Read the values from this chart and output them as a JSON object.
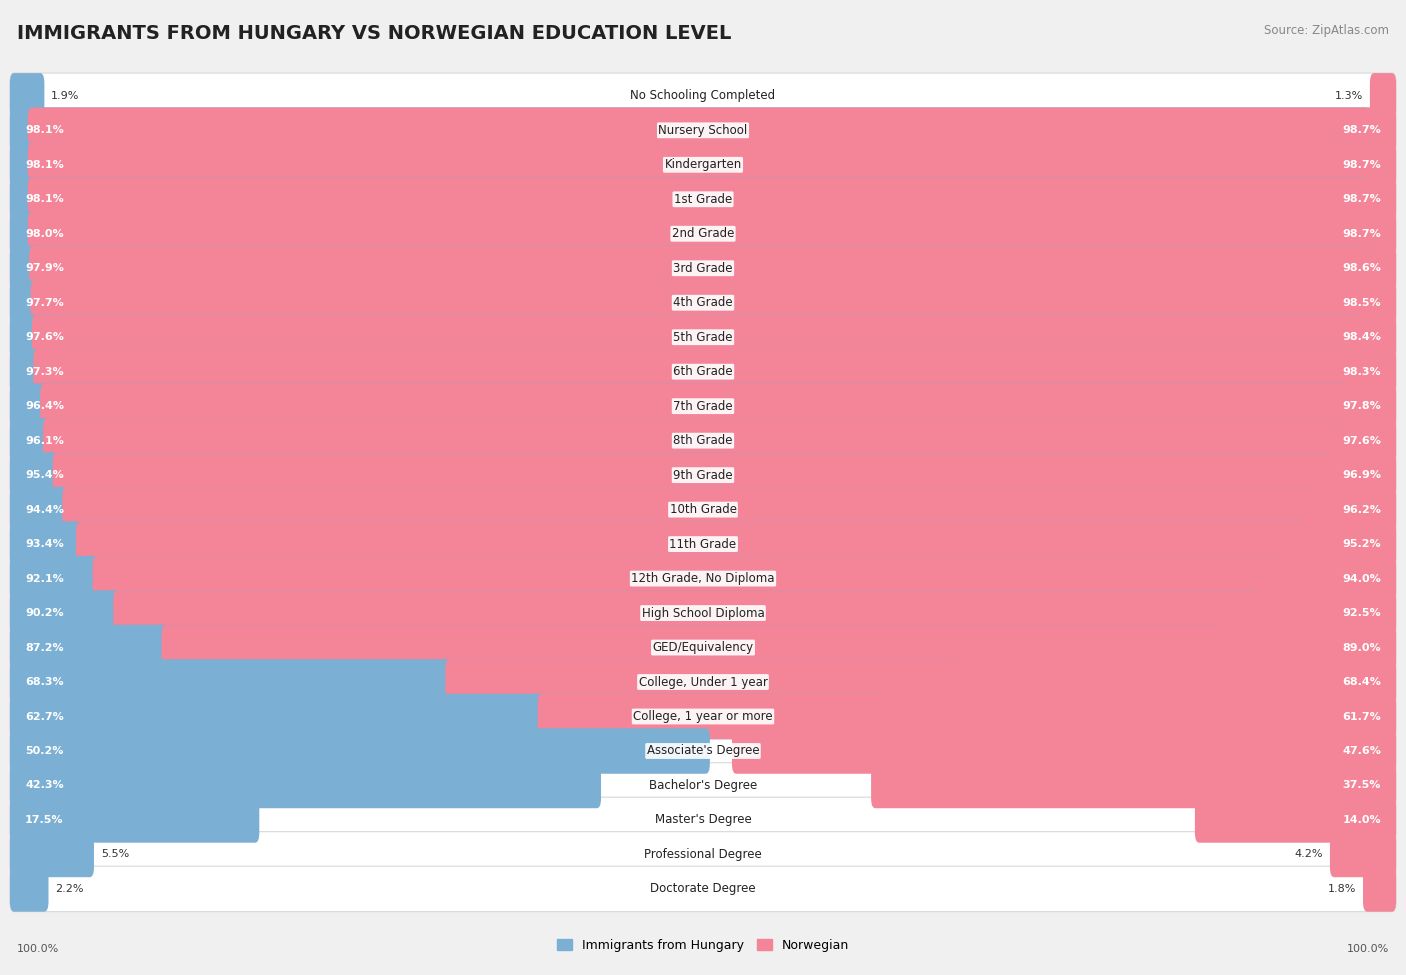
{
  "title": "IMMIGRANTS FROM HUNGARY VS NORWEGIAN EDUCATION LEVEL",
  "source": "Source: ZipAtlas.com",
  "categories": [
    "No Schooling Completed",
    "Nursery School",
    "Kindergarten",
    "1st Grade",
    "2nd Grade",
    "3rd Grade",
    "4th Grade",
    "5th Grade",
    "6th Grade",
    "7th Grade",
    "8th Grade",
    "9th Grade",
    "10th Grade",
    "11th Grade",
    "12th Grade, No Diploma",
    "High School Diploma",
    "GED/Equivalency",
    "College, Under 1 year",
    "College, 1 year or more",
    "Associate's Degree",
    "Bachelor's Degree",
    "Master's Degree",
    "Professional Degree",
    "Doctorate Degree"
  ],
  "hungary_values": [
    1.9,
    98.1,
    98.1,
    98.1,
    98.0,
    97.9,
    97.7,
    97.6,
    97.3,
    96.4,
    96.1,
    95.4,
    94.4,
    93.4,
    92.1,
    90.2,
    87.2,
    68.3,
    62.7,
    50.2,
    42.3,
    17.5,
    5.5,
    2.2
  ],
  "norwegian_values": [
    1.3,
    98.7,
    98.7,
    98.7,
    98.7,
    98.6,
    98.5,
    98.4,
    98.3,
    97.8,
    97.6,
    96.9,
    96.2,
    95.2,
    94.0,
    92.5,
    89.0,
    68.4,
    61.7,
    47.6,
    37.5,
    14.0,
    4.2,
    1.8
  ],
  "hungary_color": "#7bafd4",
  "norwegian_color": "#f48498",
  "background_color": "#f0f0f0",
  "bar_bg_color": "#ffffff",
  "row_border_color": "#d8d8d8",
  "title_fontsize": 14,
  "label_fontsize": 8.5,
  "value_fontsize": 8.0,
  "legend_fontsize": 9,
  "source_fontsize": 8.5
}
